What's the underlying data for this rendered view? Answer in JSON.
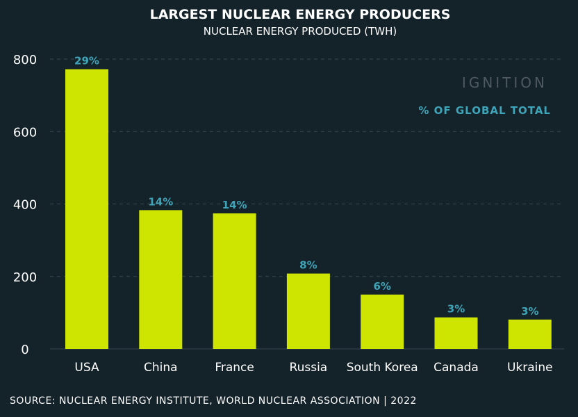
{
  "colors": {
    "background": "#14222a",
    "bar": "#cde500",
    "accent": "#3fa4b7",
    "grid": "#3a4a52",
    "text": "#ffffff",
    "brand": "#4e5a60"
  },
  "brand": "IGNITION",
  "legend_note": "% OF GLOBAL TOTAL",
  "source": "SOURCE: NUCLEAR ENERGY INSTITUTE, WORLD NUCLEAR ASSOCIATION | 2022",
  "chart_data": {
    "type": "bar",
    "title": "LARGEST NUCLEAR ENERGY PRODUCERS",
    "subtitle": "NUCLEAR ENERGY PRODUCED (TWH)",
    "xlabel": "",
    "ylabel": "",
    "ylim": [
      0,
      800
    ],
    "yticks": [
      0,
      200,
      400,
      600,
      800
    ],
    "grid": true,
    "categories": [
      "USA",
      "China",
      "France",
      "Russia",
      "South Korea",
      "Canada",
      "Ukraine"
    ],
    "values": [
      772,
      383,
      374,
      208,
      150,
      87,
      81
    ],
    "data_labels": [
      "29%",
      "14%",
      "14%",
      "8%",
      "6%",
      "3%",
      "3%"
    ]
  }
}
